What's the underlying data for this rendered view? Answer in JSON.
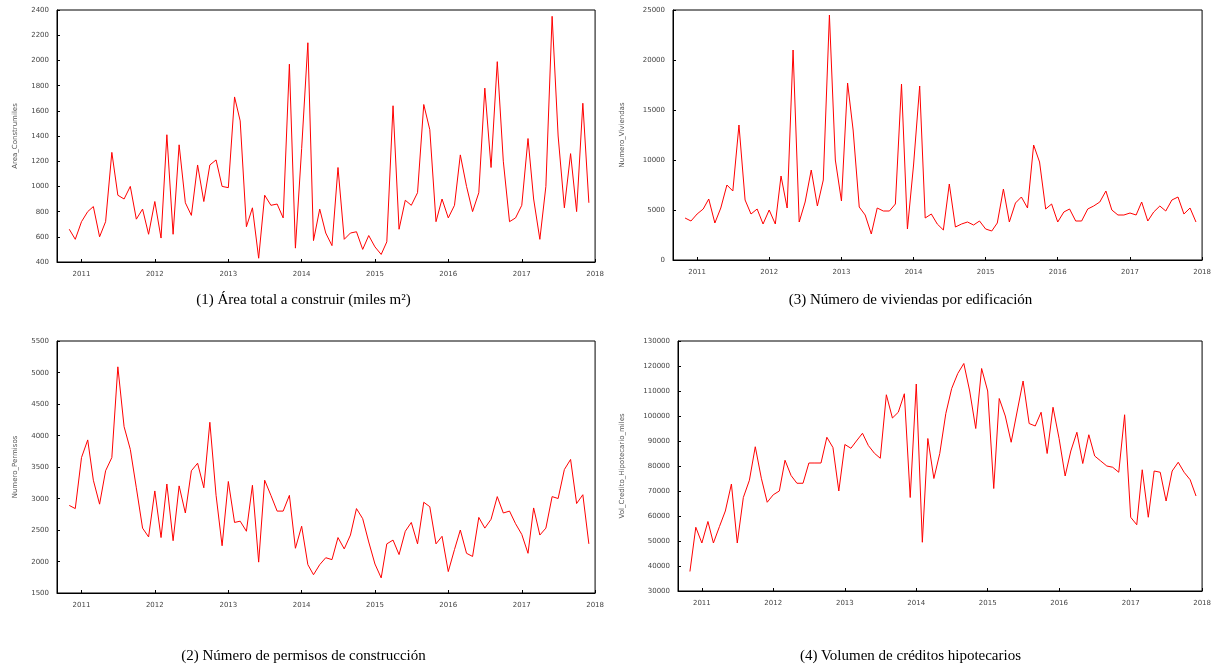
{
  "chart_data": [
    {
      "type": "line",
      "title": "(1) Área total a construir (miles m²)",
      "ylabel": "Area_Construmiles",
      "marker": "none",
      "line_style": "solid",
      "x": [
        "2010-11",
        "2010-12",
        "2011-01",
        "2011-02",
        "2011-03",
        "2011-04",
        "2011-05",
        "2011-06",
        "2011-07",
        "2011-08",
        "2011-09",
        "2011-10",
        "2011-11",
        "2011-12",
        "2012-01",
        "2012-02",
        "2012-03",
        "2012-04",
        "2012-05",
        "2012-06",
        "2012-07",
        "2012-08",
        "2012-09",
        "2012-10",
        "2012-11",
        "2012-12",
        "2013-01",
        "2013-02",
        "2013-03",
        "2013-04",
        "2013-05",
        "2013-06",
        "2013-07",
        "2013-08",
        "2013-09",
        "2013-10",
        "2013-11",
        "2013-12",
        "2014-01",
        "2014-02",
        "2014-03",
        "2014-04",
        "2014-05",
        "2014-06",
        "2014-07",
        "2014-08",
        "2014-09",
        "2014-10",
        "2014-11",
        "2014-12",
        "2015-01",
        "2015-02",
        "2015-03",
        "2015-04",
        "2015-05",
        "2015-06",
        "2015-07",
        "2015-08",
        "2015-09",
        "2015-10",
        "2015-11",
        "2015-12",
        "2016-01",
        "2016-02",
        "2016-03",
        "2016-04",
        "2016-05",
        "2016-06",
        "2016-07",
        "2016-08",
        "2016-09",
        "2016-10",
        "2016-11",
        "2016-12",
        "2017-01",
        "2017-02",
        "2017-03",
        "2017-04",
        "2017-05",
        "2017-06",
        "2017-07",
        "2017-08",
        "2017-09",
        "2017-10",
        "2017-11",
        "2017-12"
      ],
      "series": [
        {
          "color": "#ff0000",
          "values": [
            660,
            580,
            720,
            800,
            840,
            600,
            720,
            1270,
            930,
            900,
            1000,
            740,
            820,
            620,
            880,
            590,
            1410,
            620,
            1330,
            870,
            770,
            1170,
            880,
            1170,
            1210,
            1000,
            990,
            1710,
            1520,
            680,
            830,
            430,
            930,
            850,
            860,
            750,
            1970,
            510,
            1300,
            2140,
            570,
            820,
            630,
            530,
            1150,
            580,
            630,
            640,
            500,
            610,
            520,
            460,
            560,
            1640,
            660,
            890,
            850,
            950,
            1650,
            1450,
            720,
            900,
            750,
            850,
            1250,
            1000,
            800,
            950,
            1780,
            1150,
            1990,
            1200,
            720,
            750,
            850,
            1380,
            900,
            580,
            1000,
            2350,
            1400,
            830,
            1260,
            800,
            1660,
            870
          ]
        }
      ],
      "xlim": [
        "2010-09",
        "2018-01"
      ],
      "xticks": [
        "2011",
        "2012",
        "2013",
        "2014",
        "2015",
        "2016",
        "2017",
        "2018"
      ],
      "ylim": [
        400,
        2400
      ],
      "yticks": [
        400,
        600,
        800,
        1000,
        1200,
        1400,
        1600,
        1800,
        2000,
        2200,
        2400
      ]
    },
    {
      "type": "line",
      "title": "(3) Número de viviendas por edificación",
      "ylabel": "Numero_Viviendas",
      "marker": "none",
      "line_style": "solid",
      "x": [
        "2010-11",
        "2010-12",
        "2011-01",
        "2011-02",
        "2011-03",
        "2011-04",
        "2011-05",
        "2011-06",
        "2011-07",
        "2011-08",
        "2011-09",
        "2011-10",
        "2011-11",
        "2011-12",
        "2012-01",
        "2012-02",
        "2012-03",
        "2012-04",
        "2012-05",
        "2012-06",
        "2012-07",
        "2012-08",
        "2012-09",
        "2012-10",
        "2012-11",
        "2012-12",
        "2013-01",
        "2013-02",
        "2013-03",
        "2013-04",
        "2013-05",
        "2013-06",
        "2013-07",
        "2013-08",
        "2013-09",
        "2013-10",
        "2013-11",
        "2013-12",
        "2014-01",
        "2014-02",
        "2014-03",
        "2014-04",
        "2014-05",
        "2014-06",
        "2014-07",
        "2014-08",
        "2014-09",
        "2014-10",
        "2014-11",
        "2014-12",
        "2015-01",
        "2015-02",
        "2015-03",
        "2015-04",
        "2015-05",
        "2015-06",
        "2015-07",
        "2015-08",
        "2015-09",
        "2015-10",
        "2015-11",
        "2015-12",
        "2016-01",
        "2016-02",
        "2016-03",
        "2016-04",
        "2016-05",
        "2016-06",
        "2016-07",
        "2016-08",
        "2016-09",
        "2016-10",
        "2016-11",
        "2016-12",
        "2017-01",
        "2017-02",
        "2017-03",
        "2017-04",
        "2017-05",
        "2017-06",
        "2017-07",
        "2017-08",
        "2017-09",
        "2017-10",
        "2017-11",
        "2017-12"
      ],
      "series": [
        {
          "color": "#ff0000",
          "values": [
            4200,
            3900,
            4600,
            5100,
            6100,
            3700,
            5200,
            7500,
            6900,
            13500,
            6000,
            4600,
            5100,
            3600,
            5000,
            3600,
            8400,
            5200,
            21000,
            3800,
            5800,
            9000,
            5400,
            8000,
            24500,
            10000,
            5900,
            17700,
            13000,
            5300,
            4500,
            2600,
            5200,
            4900,
            4900,
            5600,
            17600,
            3100,
            9500,
            17400,
            4200,
            4600,
            3600,
            3000,
            7600,
            3300,
            3600,
            3800,
            3500,
            3900,
            3100,
            2900,
            3700,
            7100,
            3800,
            5700,
            6300,
            5200,
            11500,
            9800,
            5100,
            5600,
            3800,
            4800,
            5100,
            3900,
            3900,
            5100,
            5400,
            5800,
            6900,
            5000,
            4500,
            4500,
            4700,
            4500,
            5800,
            3900,
            4800,
            5400,
            4900,
            6000,
            6300,
            4600,
            5200,
            3800
          ]
        }
      ],
      "xlim": [
        "2010-09",
        "2018-01"
      ],
      "xticks": [
        "2011",
        "2012",
        "2013",
        "2014",
        "2015",
        "2016",
        "2017",
        "2018"
      ],
      "ylim": [
        0,
        25000
      ],
      "yticks": [
        0,
        5000,
        10000,
        15000,
        20000,
        25000
      ]
    },
    {
      "type": "line",
      "title": "(2) Número de permisos de construcción",
      "ylabel": "Numero_Permisos",
      "marker": "none",
      "line_style": "solid",
      "x": [
        "2010-11",
        "2010-12",
        "2011-01",
        "2011-02",
        "2011-03",
        "2011-04",
        "2011-05",
        "2011-06",
        "2011-07",
        "2011-08",
        "2011-09",
        "2011-10",
        "2011-11",
        "2011-12",
        "2012-01",
        "2012-02",
        "2012-03",
        "2012-04",
        "2012-05",
        "2012-06",
        "2012-07",
        "2012-08",
        "2012-09",
        "2012-10",
        "2012-11",
        "2012-12",
        "2013-01",
        "2013-02",
        "2013-03",
        "2013-04",
        "2013-05",
        "2013-06",
        "2013-07",
        "2013-08",
        "2013-09",
        "2013-10",
        "2013-11",
        "2013-12",
        "2014-01",
        "2014-02",
        "2014-03",
        "2014-04",
        "2014-05",
        "2014-06",
        "2014-07",
        "2014-08",
        "2014-09",
        "2014-10",
        "2014-11",
        "2014-12",
        "2015-01",
        "2015-02",
        "2015-03",
        "2015-04",
        "2015-05",
        "2015-06",
        "2015-07",
        "2015-08",
        "2015-09",
        "2015-10",
        "2015-11",
        "2015-12",
        "2016-01",
        "2016-02",
        "2016-03",
        "2016-04",
        "2016-05",
        "2016-06",
        "2016-07",
        "2016-08",
        "2016-09",
        "2016-10",
        "2016-11",
        "2016-12",
        "2017-01",
        "2017-02",
        "2017-03",
        "2017-04",
        "2017-05",
        "2017-06",
        "2017-07",
        "2017-08",
        "2017-09",
        "2017-10",
        "2017-11",
        "2017-12"
      ],
      "series": [
        {
          "color": "#ff0000",
          "values": [
            2890,
            2840,
            3650,
            3930,
            3290,
            2910,
            3440,
            3650,
            5090,
            4140,
            3780,
            3170,
            2530,
            2390,
            3120,
            2380,
            3230,
            2330,
            3200,
            2770,
            3440,
            3560,
            3170,
            4210,
            3050,
            2250,
            3270,
            2620,
            2640,
            2480,
            3210,
            1990,
            3290,
            3050,
            2800,
            2800,
            3050,
            2210,
            2560,
            1950,
            1790,
            1950,
            2060,
            2030,
            2380,
            2200,
            2420,
            2840,
            2680,
            2310,
            1960,
            1740,
            2280,
            2340,
            2110,
            2480,
            2620,
            2280,
            2940,
            2870,
            2280,
            2400,
            1840,
            2190,
            2500,
            2130,
            2080,
            2700,
            2530,
            2670,
            3030,
            2770,
            2800,
            2600,
            2430,
            2130,
            2850,
            2420,
            2530,
            3030,
            3000,
            3460,
            3620,
            2920,
            3060,
            2280
          ]
        }
      ],
      "xlim": [
        "2010-09",
        "2018-01"
      ],
      "xticks": [
        "2011",
        "2012",
        "2013",
        "2014",
        "2015",
        "2016",
        "2017",
        "2018"
      ],
      "ylim": [
        1500,
        5500
      ],
      "yticks": [
        1500,
        2000,
        2500,
        3000,
        3500,
        4000,
        4500,
        5000,
        5500
      ]
    },
    {
      "type": "line",
      "title": "(4) Volumen de créditos hipotecarios",
      "ylabel": "Vol_Credito_Hipotecario_miles",
      "marker": "none",
      "line_style": "solid",
      "x": [
        "2010-11",
        "2010-12",
        "2011-01",
        "2011-02",
        "2011-03",
        "2011-04",
        "2011-05",
        "2011-06",
        "2011-07",
        "2011-08",
        "2011-09",
        "2011-10",
        "2011-11",
        "2011-12",
        "2012-01",
        "2012-02",
        "2012-03",
        "2012-04",
        "2012-05",
        "2012-06",
        "2012-07",
        "2012-08",
        "2012-09",
        "2012-10",
        "2012-11",
        "2012-12",
        "2013-01",
        "2013-02",
        "2013-03",
        "2013-04",
        "2013-05",
        "2013-06",
        "2013-07",
        "2013-08",
        "2013-09",
        "2013-10",
        "2013-11",
        "2013-12",
        "2014-01",
        "2014-02",
        "2014-03",
        "2014-04",
        "2014-05",
        "2014-06",
        "2014-07",
        "2014-08",
        "2014-09",
        "2014-10",
        "2014-11",
        "2014-12",
        "2015-01",
        "2015-02",
        "2015-03",
        "2015-04",
        "2015-05",
        "2015-06",
        "2015-07",
        "2015-08",
        "2015-09",
        "2015-10",
        "2015-11",
        "2015-12",
        "2016-01",
        "2016-02",
        "2016-03",
        "2016-04",
        "2016-05",
        "2016-06",
        "2016-07",
        "2016-08",
        "2016-09",
        "2016-10",
        "2016-11",
        "2016-12",
        "2017-01",
        "2017-02",
        "2017-03",
        "2017-04",
        "2017-05",
        "2017-06",
        "2017-07",
        "2017-08",
        "2017-09",
        "2017-10",
        "2017-11",
        "2017-12"
      ],
      "series": [
        {
          "color": "#ff0000",
          "values": [
            37800,
            55500,
            49200,
            57800,
            49200,
            55800,
            62000,
            72800,
            49200,
            67400,
            74300,
            87700,
            75100,
            65500,
            68500,
            70000,
            82300,
            76200,
            73100,
            73100,
            81200,
            81200,
            81200,
            91500,
            87400,
            70000,
            88600,
            87100,
            90000,
            93100,
            88200,
            85100,
            83100,
            108500,
            99200,
            101500,
            108900,
            67400,
            112800,
            49500,
            91000,
            75000,
            85000,
            101000,
            111000,
            117000,
            121000,
            110000,
            95000,
            119000,
            110000,
            71000,
            107000,
            100000,
            89500,
            102000,
            114000,
            97000,
            96000,
            101500,
            85000,
            103500,
            91000,
            76000,
            86000,
            93500,
            81000,
            92500,
            84000,
            82000,
            80000,
            79500,
            77500,
            100500,
            59500,
            56500,
            78500,
            59500,
            78000,
            77500,
            66000,
            78000,
            81500,
            77500,
            74500,
            68000
          ]
        }
      ],
      "xlim": [
        "2010-09",
        "2018-01"
      ],
      "xticks": [
        "2011",
        "2012",
        "2013",
        "2014",
        "2015",
        "2016",
        "2017",
        "2018"
      ],
      "ylim": [
        30000,
        130000
      ],
      "yticks": [
        30000,
        40000,
        50000,
        60000,
        70000,
        80000,
        90000,
        100000,
        110000,
        120000,
        130000
      ]
    }
  ]
}
